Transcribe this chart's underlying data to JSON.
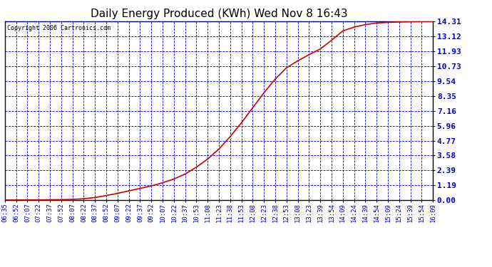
{
  "title": "Daily Energy Produced (KWh) Wed Nov 8 16:43",
  "copyright_text": "Copyright 2006 Cartronics.com",
  "line_color": "#cc0000",
  "background_color": "#ffffff",
  "plot_bg_color": "#ffffff",
  "grid_color": "#0000cc",
  "border_color": "#000000",
  "text_color": "#0000cc",
  "title_color": "#000000",
  "yticks": [
    0.0,
    1.19,
    2.39,
    3.58,
    4.77,
    5.96,
    7.16,
    8.35,
    9.54,
    10.73,
    11.93,
    13.12,
    14.31
  ],
  "x_labels": [
    "06:35",
    "06:52",
    "07:07",
    "07:22",
    "07:37",
    "07:52",
    "08:07",
    "08:22",
    "08:37",
    "08:52",
    "09:07",
    "09:22",
    "09:37",
    "09:52",
    "10:07",
    "10:22",
    "10:37",
    "10:53",
    "11:08",
    "11:23",
    "11:38",
    "11:53",
    "12:08",
    "12:23",
    "12:38",
    "12:53",
    "13:08",
    "13:23",
    "13:39",
    "13:54",
    "14:09",
    "14:24",
    "14:39",
    "14:54",
    "15:09",
    "15:24",
    "15:39",
    "15:54",
    "16:09"
  ],
  "y_data": [
    0.02,
    0.02,
    0.03,
    0.03,
    0.04,
    0.05,
    0.07,
    0.12,
    0.22,
    0.38,
    0.55,
    0.75,
    0.95,
    1.15,
    1.4,
    1.7,
    2.1,
    2.65,
    3.3,
    4.1,
    5.1,
    6.2,
    7.4,
    8.6,
    9.7,
    10.6,
    11.15,
    11.65,
    12.1,
    12.8,
    13.55,
    13.85,
    14.05,
    14.18,
    14.23,
    14.26,
    14.28,
    14.3,
    14.31
  ],
  "figsize": [
    6.9,
    3.75
  ],
  "dpi": 100
}
